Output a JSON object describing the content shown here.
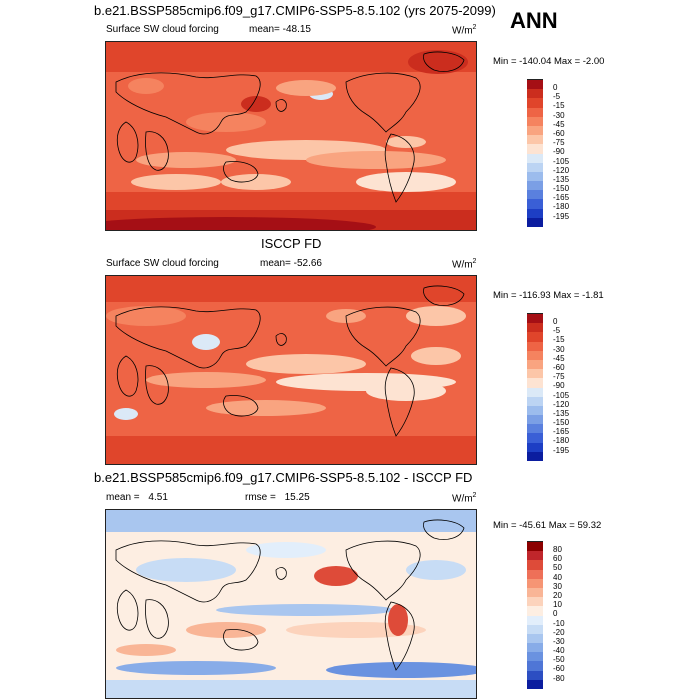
{
  "annotation": "ANN",
  "panels": [
    {
      "title": "b.e21.BSSP585cmip6.f09_g17.CMIP6-SSP5-8.5.102 (yrs 2075-2099)",
      "left_label": "Surface SW cloud forcing",
      "stat_label": "mean=",
      "stat_value": "-48.15",
      "stat2_label": "",
      "stat2_value": "",
      "units": "W/m",
      "units_sup": "2",
      "minmax": "Min = -140.04 Max =  -2.00",
      "colorbar": {
        "labels": [
          "0",
          "-5",
          "-15",
          "-30",
          "-45",
          "-60",
          "-75",
          "-90",
          "-105",
          "-120",
          "-135",
          "-150",
          "-165",
          "-180",
          "-195"
        ],
        "colors": [
          "#a50f15",
          "#cb2d1e",
          "#e0452b",
          "#ee6445",
          "#f5835f",
          "#f9a480",
          "#fcc6a8",
          "#fde3d2",
          "#dbe9f7",
          "#bcd4f3",
          "#9cbced",
          "#7b9fe5",
          "#5a80de",
          "#3a5fd6",
          "#1d3ec4",
          "#0b1d9f"
        ]
      }
    },
    {
      "title": "ISCCP FD",
      "left_label": "Surface SW cloud forcing",
      "stat_label": "mean=",
      "stat_value": "-52.66",
      "stat2_label": "",
      "stat2_value": "",
      "units": "W/m",
      "units_sup": "2",
      "minmax": "Min = -116.93 Max =  -1.81",
      "colorbar": {
        "labels": [
          "0",
          "-5",
          "-15",
          "-30",
          "-45",
          "-60",
          "-75",
          "-90",
          "-105",
          "-120",
          "-135",
          "-150",
          "-165",
          "-180",
          "-195"
        ],
        "colors": [
          "#a50f15",
          "#cb2d1e",
          "#e0452b",
          "#ee6445",
          "#f5835f",
          "#f9a480",
          "#fcc6a8",
          "#fde3d2",
          "#dbe9f7",
          "#bcd4f3",
          "#9cbced",
          "#7b9fe5",
          "#5a80de",
          "#3a5fd6",
          "#1d3ec4",
          "#0b1d9f"
        ]
      }
    },
    {
      "title": "b.e21.BSSP585cmip6.f09_g17.CMIP6-SSP5-8.5.102 - ISCCP FD",
      "left_label": "",
      "stat_label": "mean =",
      "stat_value": "4.51",
      "stat2_label": "rmse =",
      "stat2_value": "15.25",
      "units": "W/m",
      "units_sup": "2",
      "minmax": "Min = -45.61 Max =  59.32",
      "colorbar": {
        "labels": [
          "80",
          "60",
          "50",
          "40",
          "30",
          "20",
          "10",
          "0",
          "-10",
          "-20",
          "-30",
          "-40",
          "-50",
          "-60",
          "-80"
        ],
        "colors": [
          "#8b0000",
          "#c0262b",
          "#de4b39",
          "#ee7058",
          "#f69574",
          "#f9b596",
          "#fcd3bc",
          "#fdeee2",
          "#e2eefb",
          "#c7dcf5",
          "#a9c6ef",
          "#88ace8",
          "#6a92e0",
          "#4f76d6",
          "#2c4ec2",
          "#0b1d9f"
        ]
      }
    }
  ]
}
